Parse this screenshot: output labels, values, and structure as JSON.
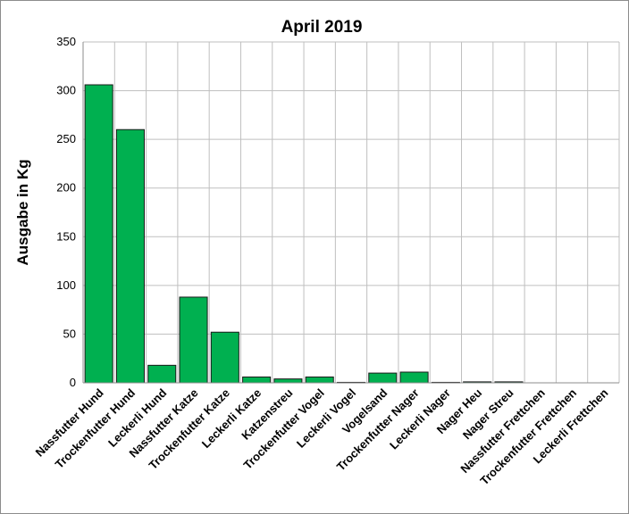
{
  "chart_data": {
    "type": "bar",
    "title": "April 2019",
    "xlabel": "",
    "ylabel": "Ausgabe in Kg",
    "ylim": [
      0,
      350
    ],
    "yticks": [
      0,
      50,
      100,
      150,
      200,
      250,
      300,
      350
    ],
    "grid": true,
    "legend": "none",
    "bar_color": "#00b050",
    "categories": [
      "Nassfutter Hund",
      "Trockenfutter Hund",
      "Leckerli Hund",
      "Nassfutter Katze",
      "Trockenfutter Katze",
      "Leckerli Katze",
      "Katzenstreu",
      "Trockenfutter Vogel",
      "Leckerli Vogel",
      "Vogelsand",
      "Trockenfutter Nager",
      "Leckerli Nager",
      "Nager Heu",
      "Nager Streu",
      "Nassfutter Frettchen",
      "Trockenfutter Frettchen",
      "Leckerli Frettchen"
    ],
    "values": [
      306,
      260,
      18,
      88,
      52,
      6,
      4,
      6,
      0.5,
      10,
      11,
      0.5,
      1,
      1,
      0,
      0,
      0
    ]
  }
}
